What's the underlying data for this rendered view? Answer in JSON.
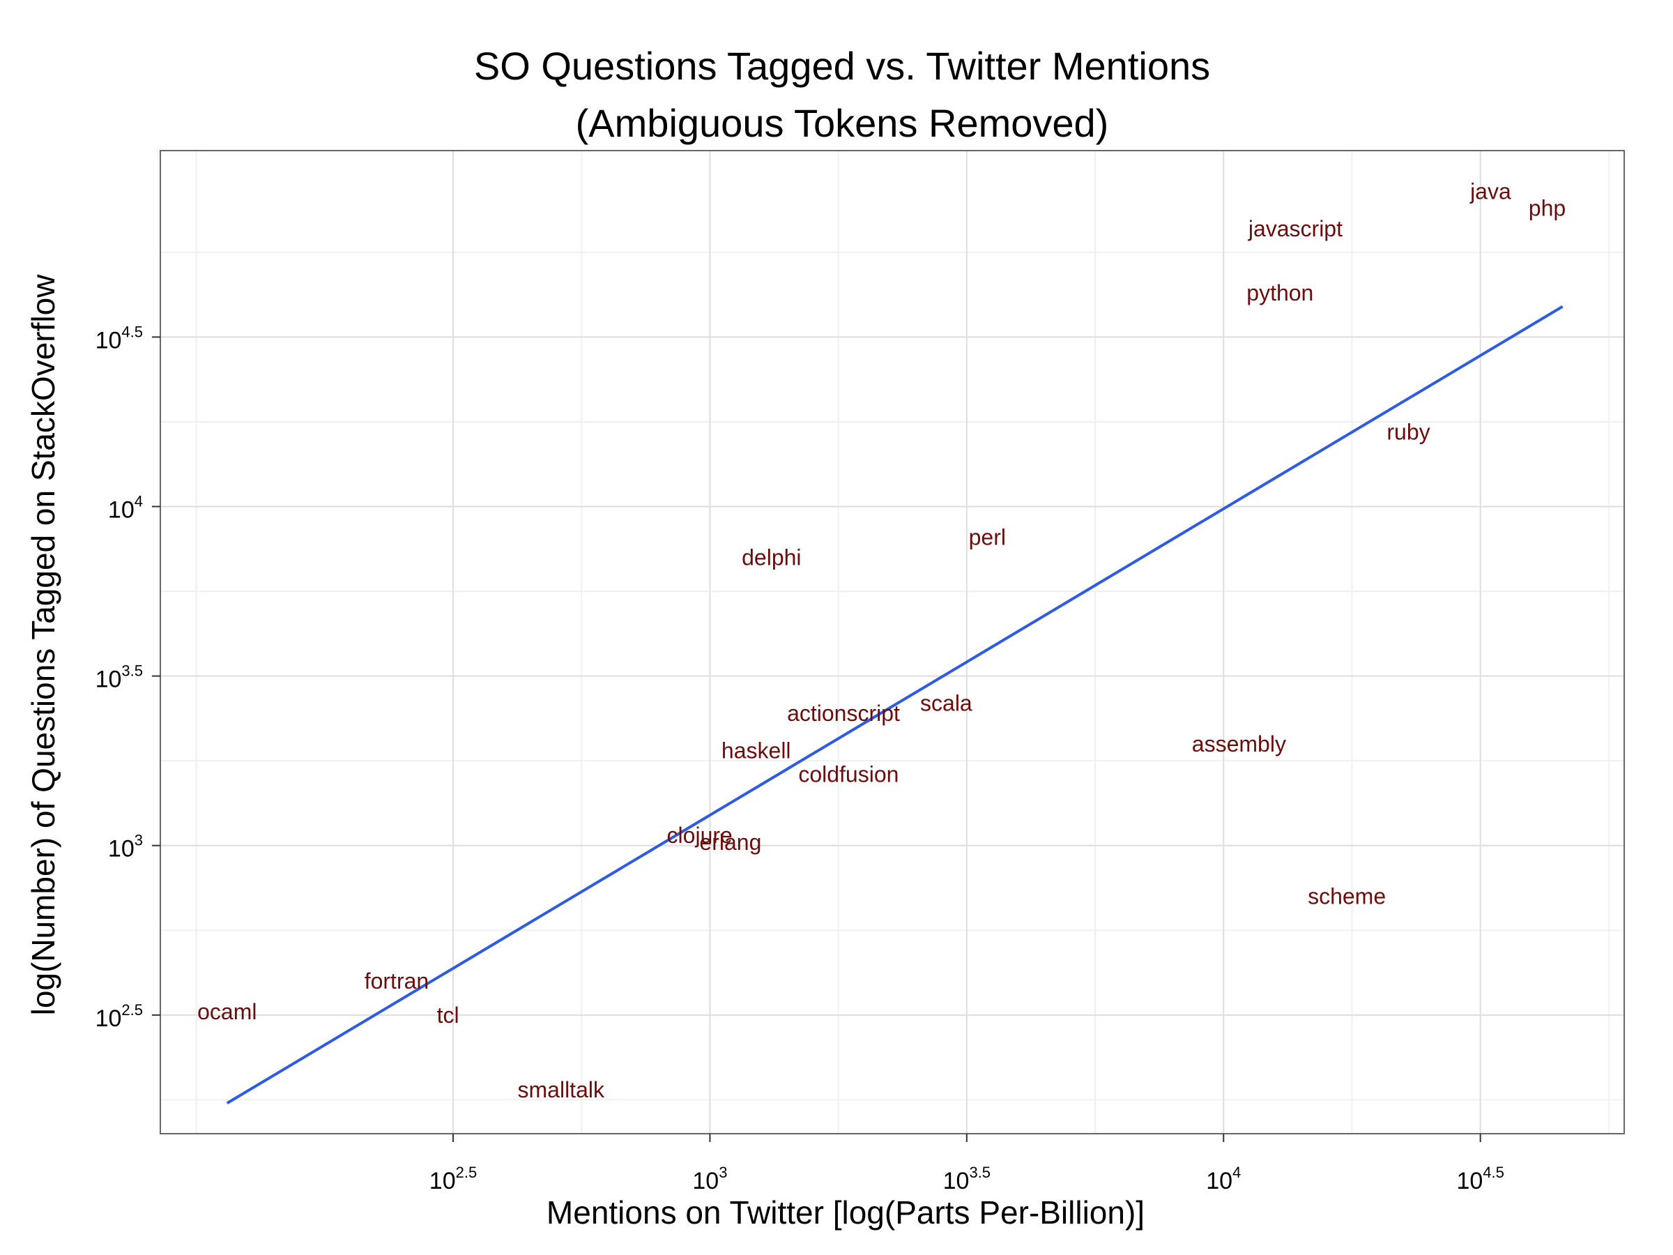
{
  "chart_data": {
    "type": "scatter",
    "title": "SO Questions Tagged vs. Twitter Mentions",
    "subtitle": "(Ambiguous Tokens Removed)",
    "xlabel": "Mentions on Twitter [log(Parts Per-Billion)]",
    "ylabel": "log(Number) of Questions Tagged on StackOverflow",
    "x_scale": "log10",
    "y_scale": "log10",
    "x_log_range": [
      1.93,
      4.78
    ],
    "y_log_range": [
      2.15,
      5.05
    ],
    "x_ticks": [
      {
        "base": "10",
        "exp": "2.5",
        "log": 2.5
      },
      {
        "base": "10",
        "exp": "3",
        "log": 3.0
      },
      {
        "base": "10",
        "exp": "3.5",
        "log": 3.5
      },
      {
        "base": "10",
        "exp": "4",
        "log": 4.0
      },
      {
        "base": "10",
        "exp": "4.5",
        "log": 4.5
      }
    ],
    "y_ticks": [
      {
        "base": "10",
        "exp": "2.5",
        "log": 2.5
      },
      {
        "base": "10",
        "exp": "3",
        "log": 3.0
      },
      {
        "base": "10",
        "exp": "3.5",
        "log": 3.5
      },
      {
        "base": "10",
        "exp": "4",
        "log": 4.0
      },
      {
        "base": "10",
        "exp": "4.5",
        "log": 4.5
      }
    ],
    "grid": true,
    "label_color": "#6b0d0d",
    "fit_line_color": "#2d5be3",
    "points": [
      {
        "label": "java",
        "x_log": 4.52,
        "y_log": 4.93
      },
      {
        "label": "php",
        "x_log": 4.63,
        "y_log": 4.88
      },
      {
        "label": "javascript",
        "x_log": 4.14,
        "y_log": 4.82
      },
      {
        "label": "python",
        "x_log": 4.11,
        "y_log": 4.63
      },
      {
        "label": "ruby",
        "x_log": 4.36,
        "y_log": 4.22
      },
      {
        "label": "perl",
        "x_log": 3.54,
        "y_log": 3.91
      },
      {
        "label": "delphi",
        "x_log": 3.12,
        "y_log": 3.85
      },
      {
        "label": "scala",
        "x_log": 3.46,
        "y_log": 3.42
      },
      {
        "label": "actionscript",
        "x_log": 3.26,
        "y_log": 3.39
      },
      {
        "label": "assembly",
        "x_log": 4.03,
        "y_log": 3.3
      },
      {
        "label": "haskell",
        "x_log": 3.09,
        "y_log": 3.28
      },
      {
        "label": "coldfusion",
        "x_log": 3.27,
        "y_log": 3.21
      },
      {
        "label": "clojure",
        "x_log": 2.98,
        "y_log": 3.03
      },
      {
        "label": "erlang",
        "x_log": 3.04,
        "y_log": 3.01
      },
      {
        "label": "scheme",
        "x_log": 4.24,
        "y_log": 2.85
      },
      {
        "label": "fortran",
        "x_log": 2.39,
        "y_log": 2.6
      },
      {
        "label": "ocaml",
        "x_log": 2.06,
        "y_log": 2.51
      },
      {
        "label": "tcl",
        "x_log": 2.49,
        "y_log": 2.5
      },
      {
        "label": "smalltalk",
        "x_log": 2.71,
        "y_log": 2.28
      }
    ],
    "fit_line": {
      "x_log": [
        2.06,
        4.66
      ],
      "y_log": [
        2.24,
        4.59
      ]
    }
  }
}
